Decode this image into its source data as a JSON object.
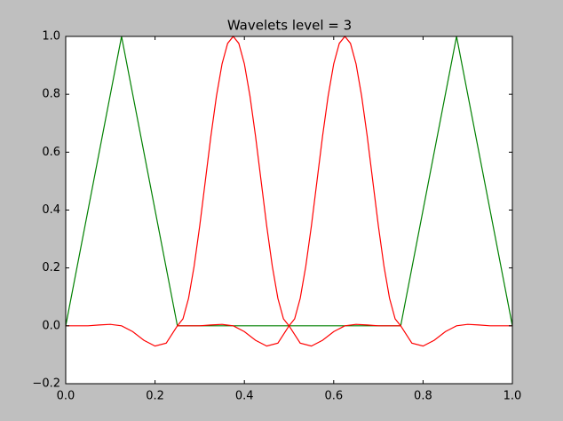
{
  "chart_data": {
    "type": "line",
    "title": "Wavelets level = 3",
    "xlim": [
      0,
      1
    ],
    "ylim": [
      -0.2,
      1
    ],
    "xticks": [
      {
        "value": 0,
        "label": "0.0"
      },
      0.2,
      0.4,
      0.6,
      0.8,
      {
        "value": 1,
        "label": "1.0"
      }
    ],
    "yticks": [
      {
        "value": -0.2,
        "label": "−0.2"
      },
      {
        "value": 0,
        "label": "0.0"
      },
      0.2,
      0.4,
      0.6,
      0.8,
      {
        "value": 1,
        "label": "1.0"
      }
    ],
    "grid": false,
    "series": [
      {
        "color": "#008000",
        "x": [
          0,
          0.125,
          0.25,
          0.75,
          0.875,
          1
        ],
        "values": [
          0,
          1,
          0,
          0,
          1,
          0
        ]
      },
      {
        "color": "#ff0000",
        "x": [
          0,
          0.025,
          0.05,
          0.075,
          0.1,
          0.125,
          0.15,
          0.175,
          0.2,
          0.225,
          0.25,
          0.2625,
          0.275,
          0.2875,
          0.3,
          0.3125,
          0.325,
          0.3375,
          0.35,
          0.3625,
          0.375,
          0.3875,
          0.4,
          0.4125,
          0.425,
          0.4375,
          0.45,
          0.4625,
          0.475,
          0.4875,
          0.5,
          0.525,
          0.55,
          0.575,
          0.6,
          0.625,
          0.65,
          0.675,
          0.7,
          0.725,
          0.75
        ],
        "values": [
          0,
          0,
          0,
          0.003,
          0.005,
          0,
          -0.02,
          -0.05,
          -0.07,
          -0.06,
          0,
          0.024,
          0.095,
          0.206,
          0.345,
          0.5,
          0.655,
          0.794,
          0.905,
          0.976,
          1,
          0.976,
          0.905,
          0.794,
          0.655,
          0.5,
          0.345,
          0.206,
          0.095,
          0.024,
          0,
          -0.06,
          -0.07,
          -0.05,
          -0.02,
          0,
          0.005,
          0.003,
          0,
          0,
          0
        ]
      },
      {
        "color": "#ff0000",
        "x": [
          0.25,
          0.275,
          0.3,
          0.325,
          0.35,
          0.375,
          0.4,
          0.425,
          0.45,
          0.475,
          0.5,
          0.5125,
          0.525,
          0.5375,
          0.55,
          0.5625,
          0.575,
          0.5875,
          0.6,
          0.6125,
          0.625,
          0.6375,
          0.65,
          0.6625,
          0.675,
          0.6875,
          0.7,
          0.7125,
          0.725,
          0.7375,
          0.75,
          0.775,
          0.8,
          0.825,
          0.85,
          0.875,
          0.9,
          0.925,
          0.95,
          0.975,
          1
        ],
        "values": [
          0,
          0,
          0,
          0.003,
          0.005,
          0,
          -0.02,
          -0.05,
          -0.07,
          -0.06,
          0,
          0.024,
          0.095,
          0.206,
          0.345,
          0.5,
          0.655,
          0.794,
          0.905,
          0.976,
          1,
          0.976,
          0.905,
          0.794,
          0.655,
          0.5,
          0.345,
          0.206,
          0.095,
          0.024,
          0,
          -0.06,
          -0.07,
          -0.05,
          -0.02,
          0,
          0.005,
          0.003,
          0,
          0,
          0
        ]
      }
    ]
  }
}
